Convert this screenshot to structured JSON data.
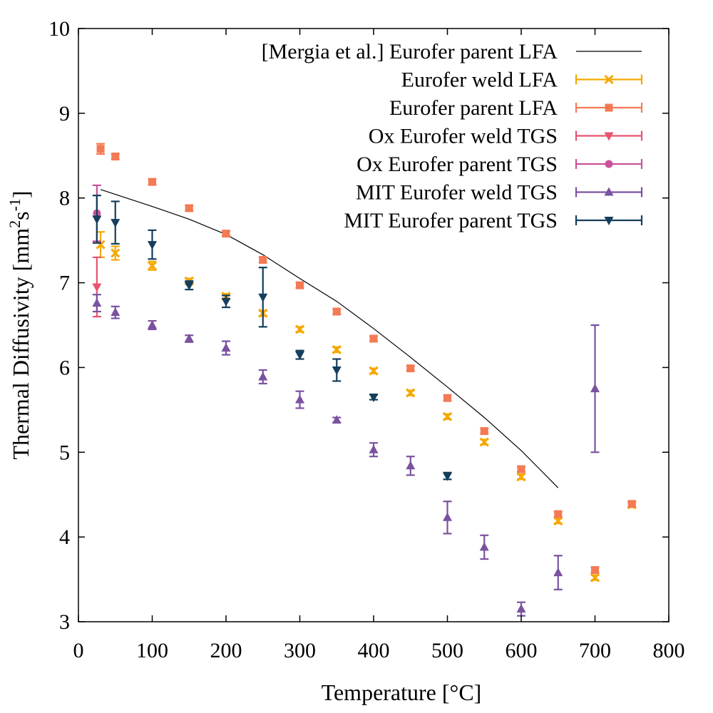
{
  "chart_data": {
    "type": "scatter",
    "title": "",
    "xlabel": "Temperature [°C]",
    "ylabel_parts": [
      "Thermal Diffusivity [mm",
      "2",
      "s",
      "-1",
      "]"
    ],
    "xlim": [
      0,
      800
    ],
    "ylim": [
      3,
      10
    ],
    "xticks": [
      0,
      100,
      200,
      300,
      400,
      500,
      600,
      700,
      800
    ],
    "yticks": [
      3,
      4,
      5,
      6,
      7,
      8,
      9,
      10
    ],
    "grid": false,
    "legend_position": "top-right",
    "series": [
      {
        "name": "[Mergia et al.] Eurofer parent LFA",
        "kind": "line",
        "color": "#000000",
        "x": [
          30,
          100,
          150,
          200,
          250,
          300,
          350,
          400,
          450,
          500,
          550,
          600,
          650
        ],
        "y": [
          8.1,
          7.9,
          7.75,
          7.57,
          7.33,
          7.05,
          6.78,
          6.46,
          6.12,
          5.77,
          5.41,
          5.02,
          4.58
        ]
      },
      {
        "name": "Eurofer weld LFA",
        "kind": "points",
        "marker": "x",
        "color": "#f5a800",
        "x": [
          30,
          50,
          100,
          150,
          200,
          250,
          300,
          350,
          400,
          450,
          500,
          550,
          600,
          650,
          700,
          750
        ],
        "y": [
          7.45,
          7.35,
          7.2,
          7.02,
          6.84,
          6.64,
          6.45,
          6.21,
          5.96,
          5.7,
          5.42,
          5.12,
          4.71,
          4.19,
          3.52,
          4.38
        ],
        "err": [
          0.15,
          0.08,
          0.05,
          0.03,
          0.03,
          0.03,
          0.03,
          0.03,
          0.03,
          0.03,
          0.03,
          0.03,
          0.03,
          0.03,
          0.03,
          0.03
        ]
      },
      {
        "name": "Eurofer parent LFA",
        "kind": "points",
        "marker": "square",
        "color": "#f47a55",
        "x": [
          30,
          50,
          100,
          150,
          200,
          250,
          300,
          350,
          400,
          450,
          500,
          550,
          600,
          650,
          700,
          750
        ],
        "y": [
          8.58,
          8.49,
          8.19,
          7.88,
          7.58,
          7.27,
          6.97,
          6.66,
          6.34,
          5.99,
          5.64,
          5.25,
          4.8,
          4.27,
          3.61,
          4.39
        ],
        "err": [
          0.06,
          0.03,
          0.03,
          0.03,
          0.03,
          0.03,
          0.03,
          0.03,
          0.03,
          0.03,
          0.03,
          0.03,
          0.03,
          0.03,
          0.03,
          0.03
        ]
      },
      {
        "name": "Ox Eurofer weld TGS",
        "kind": "points",
        "marker": "triangle-down",
        "color": "#e8536f",
        "x": [
          25
        ],
        "y": [
          6.95
        ],
        "err": [
          0.35
        ]
      },
      {
        "name": "Ox Eurofer parent TGS",
        "kind": "points",
        "marker": "circle",
        "color": "#c9529a",
        "x": [
          25
        ],
        "y": [
          7.82
        ],
        "err": [
          0.33
        ]
      },
      {
        "name": "MIT Eurofer weld TGS",
        "kind": "points",
        "marker": "triangle-up",
        "color": "#7a52a0",
        "x": [
          25,
          50,
          100,
          150,
          200,
          250,
          300,
          350,
          400,
          450,
          500,
          550,
          600,
          650,
          700
        ],
        "y": [
          6.76,
          6.65,
          6.5,
          6.34,
          6.23,
          5.89,
          5.62,
          5.38,
          5.03,
          4.84,
          4.23,
          3.88,
          3.15,
          3.58,
          5.75
        ],
        "err": [
          0.1,
          0.07,
          0.05,
          0.04,
          0.08,
          0.08,
          0.1,
          0.03,
          0.08,
          0.11,
          0.19,
          0.14,
          0.08,
          0.2,
          0.75
        ]
      },
      {
        "name": "MIT Eurofer parent TGS",
        "kind": "points",
        "marker": "triangle-down",
        "color": "#143e5c",
        "x": [
          25,
          50,
          100,
          150,
          200,
          250,
          300,
          350,
          400,
          500
        ],
        "y": [
          7.75,
          7.71,
          7.45,
          6.97,
          6.78,
          6.83,
          6.15,
          5.97,
          5.65,
          4.72
        ],
        "err": [
          0.28,
          0.25,
          0.17,
          0.05,
          0.07,
          0.35,
          0.05,
          0.13,
          0.03,
          0.04
        ]
      }
    ]
  }
}
